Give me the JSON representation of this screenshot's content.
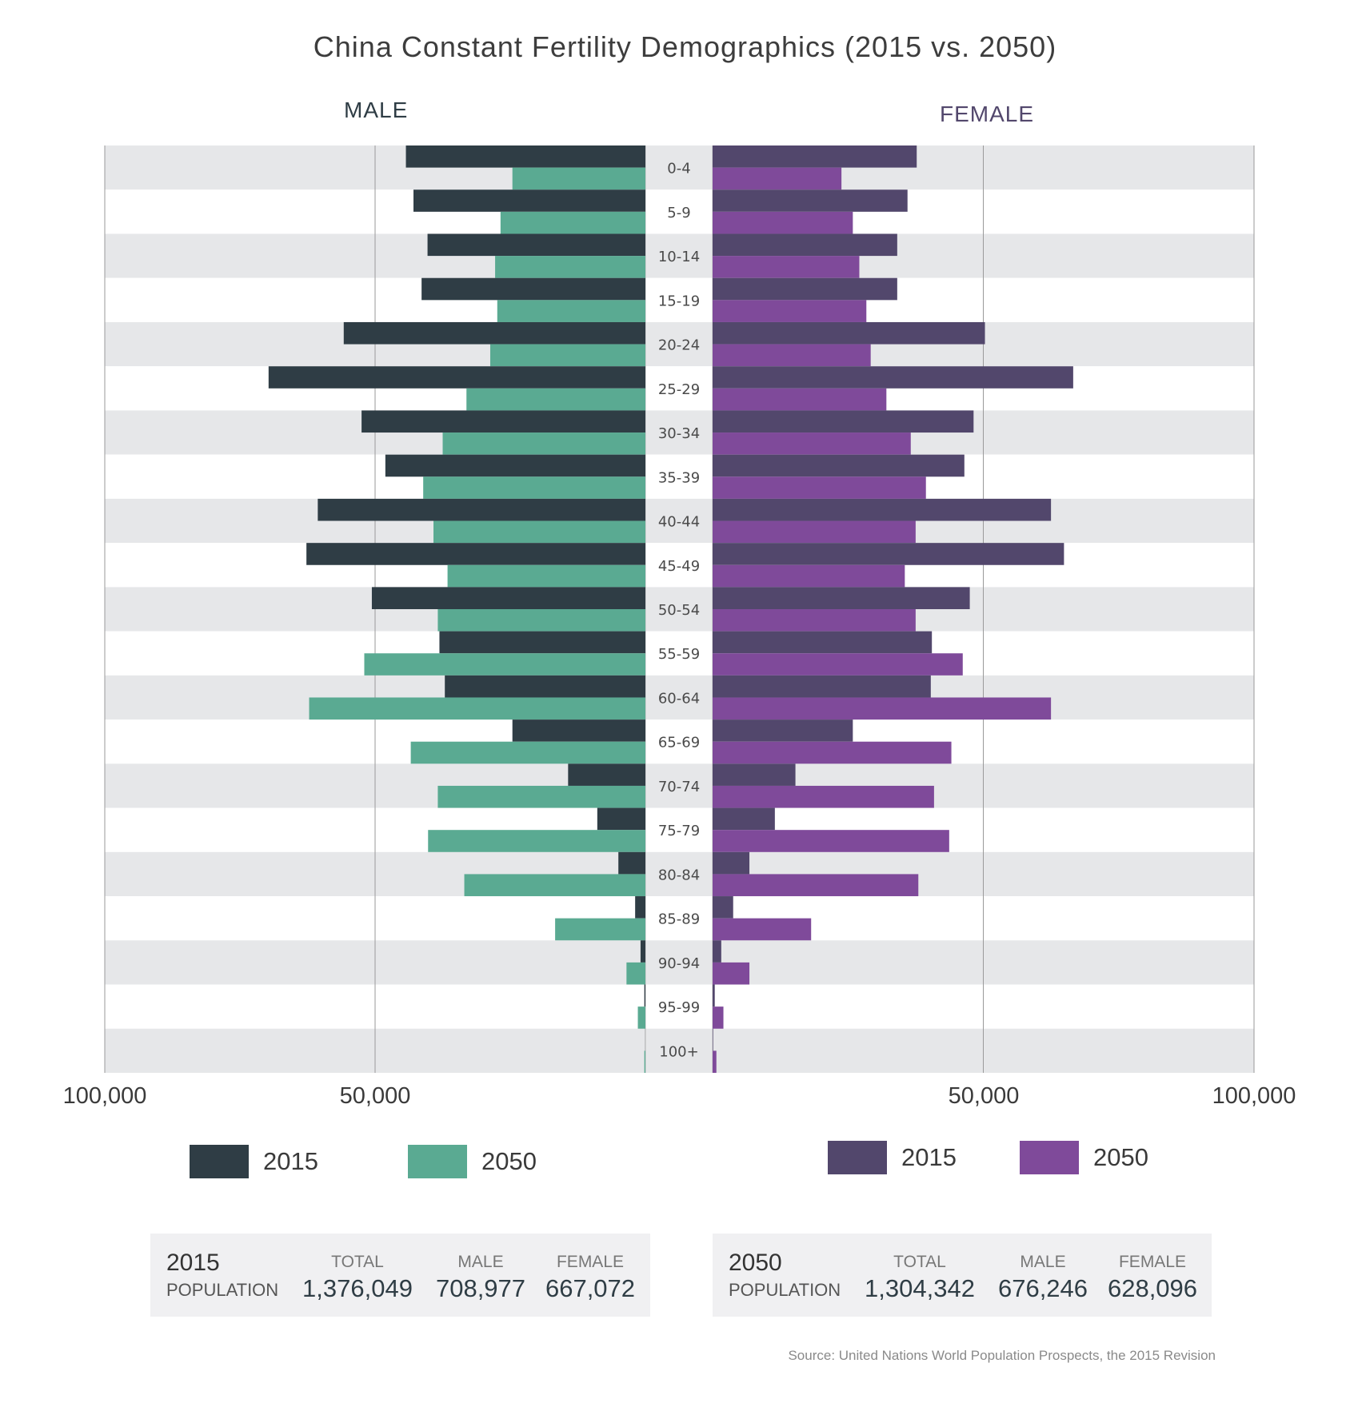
{
  "chart_data": {
    "type": "bar",
    "subtype": "population-pyramid",
    "title": "China Constant Fertility Demographics (2015 vs. 2050)",
    "categories": [
      "0-4",
      "5-9",
      "10-14",
      "15-19",
      "20-24",
      "25-29",
      "30-34",
      "35-39",
      "40-44",
      "45-49",
      "50-54",
      "55-59",
      "60-64",
      "65-69",
      "70-74",
      "75-79",
      "80-84",
      "85-89",
      "90-94",
      "95-99",
      "100+"
    ],
    "units": "thousands",
    "xlim": [
      0,
      100000
    ],
    "grid": true,
    "panels": [
      {
        "name": "MALE",
        "side": "left",
        "axis_ticks": [
          "100,000",
          "50,000"
        ],
        "series": [
          {
            "name": "2015",
            "color": "#2f3d45",
            "values": [
              44300,
              42900,
              40300,
              41400,
              55800,
              69700,
              52500,
              48100,
              60600,
              62700,
              50600,
              38100,
              37100,
              24600,
              14300,
              8900,
              5000,
              1900,
              900,
              200,
              20
            ]
          },
          {
            "name": "2050",
            "color": "#5aaa92",
            "values": [
              24600,
              26800,
              27800,
              27400,
              28700,
              33100,
              37500,
              41100,
              39200,
              36600,
              38400,
              52000,
              62200,
              43400,
              38400,
              40200,
              33500,
              16700,
              3500,
              1400,
              200
            ]
          }
        ]
      },
      {
        "name": "FEMALE",
        "side": "right",
        "axis_ticks": [
          "50,000",
          "100,000"
        ],
        "series": [
          {
            "name": "2015",
            "color": "#52476c",
            "values": [
              37700,
              36000,
              34100,
              34100,
              50300,
              66600,
              48200,
              46500,
              62500,
              64900,
              47500,
              40500,
              40300,
              25900,
              15300,
              11500,
              6800,
              3800,
              1600,
              400,
              100
            ]
          },
          {
            "name": "2050",
            "color": "#7f4a9a",
            "values": [
              23800,
              25900,
              27100,
              28400,
              29200,
              32100,
              36600,
              39400,
              37500,
              35500,
              37500,
              46200,
              62500,
              44100,
              40900,
              43700,
              38000,
              18200,
              6800,
              2000,
              700
            ]
          }
        ]
      }
    ],
    "legend": [
      {
        "label": "2015",
        "color": "#2f3d45",
        "placement": "bottom-left"
      },
      {
        "label": "2050",
        "color": "#5aaa92",
        "placement": "bottom-left"
      },
      {
        "label": "2015",
        "color": "#52476c",
        "placement": "bottom-right"
      },
      {
        "label": "2050",
        "color": "#7f4a9a",
        "placement": "bottom-right"
      }
    ]
  },
  "header": {
    "title": "China Constant Fertility Demographics (2015 vs. 2050)",
    "male_label": "MALE",
    "female_label": "FEMALE"
  },
  "axis": {
    "left_outer": "100,000",
    "left_mid": "50,000",
    "right_mid": "50,000",
    "right_outer": "100,000"
  },
  "legend_left": [
    {
      "label": "2015"
    },
    {
      "label": "2050"
    }
  ],
  "legend_right": [
    {
      "label": "2015"
    },
    {
      "label": "2050"
    }
  ],
  "summaries": [
    {
      "year": "2015",
      "pop_label": "POPULATION",
      "total_head": "TOTAL",
      "male_head": "MALE",
      "female_head": "FEMALE",
      "total": "1,376,049",
      "male": "708,977",
      "female": "667,072"
    },
    {
      "year": "2050",
      "pop_label": "POPULATION",
      "total_head": "TOTAL",
      "male_head": "MALE",
      "female_head": "FEMALE",
      "total": "1,304,342",
      "male": "676,246",
      "female": "628,096"
    }
  ],
  "source": "Source:  United Nations World Population Prospects, the 2015 Revision",
  "colors": {
    "male_2015": "#2f3d45",
    "male_2050": "#5aaa92",
    "female_2015": "#52476c",
    "female_2050": "#7f4a9a",
    "band": "#e6e7e9"
  }
}
